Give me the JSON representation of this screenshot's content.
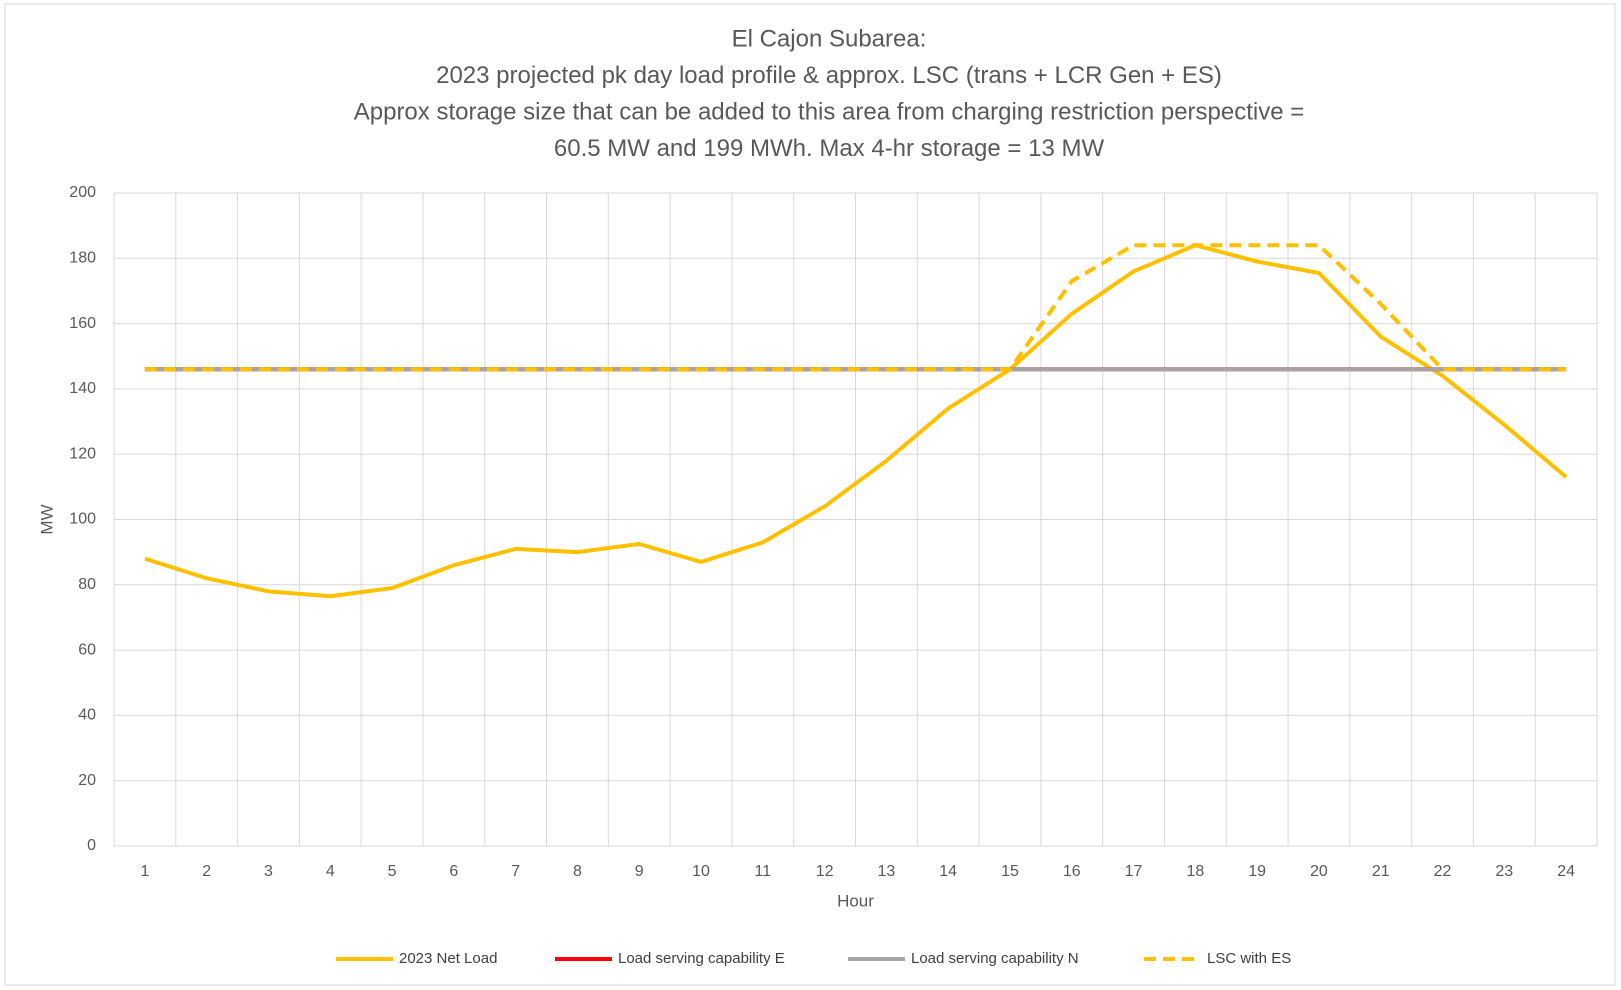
{
  "chart_data": {
    "type": "line",
    "title": [
      "El Cajon Subarea:",
      "2023 projected pk day load profile & approx. LSC (trans + LCR Gen + ES)",
      "Approx storage size that can be added to this area from charging restriction perspective =",
      "60.5 MW and 199 MWh. Max 4-hr storage = 13 MW"
    ],
    "xlabel": "Hour",
    "ylabel": "MW",
    "categories": [
      "1",
      "2",
      "3",
      "4",
      "5",
      "6",
      "7",
      "8",
      "9",
      "10",
      "11",
      "12",
      "13",
      "14",
      "15",
      "16",
      "17",
      "18",
      "19",
      "20",
      "21",
      "22",
      "23",
      "24"
    ],
    "series": [
      {
        "name": "2023 Net Load",
        "color": "#ffc000",
        "style": "solid",
        "values": [
          88,
          82,
          78,
          76.5,
          79,
          86,
          91,
          90,
          92.5,
          87,
          93,
          104,
          118,
          134,
          146,
          163,
          176,
          184,
          179,
          175.5,
          156,
          144,
          129,
          113
        ]
      },
      {
        "name": "Load serving capability E",
        "color": "#ff0000",
        "style": "solid",
        "values": [
          146,
          146,
          146,
          146,
          146,
          146,
          146,
          146,
          146,
          146,
          146,
          146,
          146,
          146,
          146,
          146,
          146,
          146,
          146,
          146,
          146,
          146,
          146,
          146
        ]
      },
      {
        "name": "Load serving capability N",
        "color": "#a5a5a5",
        "style": "solid",
        "values": [
          146,
          146,
          146,
          146,
          146,
          146,
          146,
          146,
          146,
          146,
          146,
          146,
          146,
          146,
          146,
          146,
          146,
          146,
          146,
          146,
          146,
          146,
          146,
          146
        ]
      },
      {
        "name": "LSC with ES",
        "color": "#ffc000",
        "style": "dashed",
        "values": [
          146,
          146,
          146,
          146,
          146,
          146,
          146,
          146,
          146,
          146,
          146,
          146,
          146,
          146,
          146,
          173,
          184,
          184,
          184,
          184,
          166,
          146,
          146,
          146
        ]
      }
    ],
    "ylim": [
      0,
      200
    ],
    "yticks": [
      0,
      20,
      40,
      60,
      80,
      100,
      120,
      140,
      160,
      180,
      200
    ],
    "grid": true,
    "legend": "bottom"
  }
}
